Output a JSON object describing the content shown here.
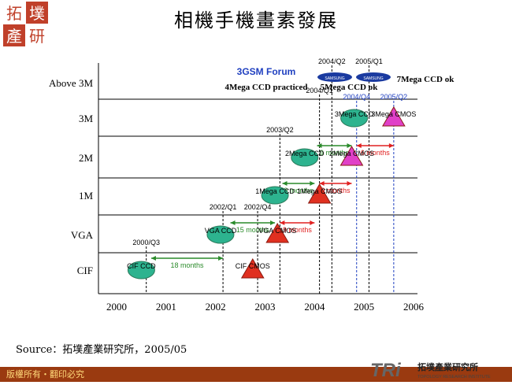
{
  "page": {
    "title": "相機手機畫素發展",
    "source": "Source：拓墣產業研究所，2005/05",
    "footer": "版權所有・翻印必究",
    "logo_text": [
      "拓",
      "墣",
      "產",
      "研"
    ],
    "tri_logo": {
      "mark": "TRi",
      "name_zh": "拓墣產業研究所",
      "name_en": "TOPOLOGY RESEARCH INSTITUTE"
    }
  },
  "chart_data": {
    "type": "scatter",
    "title": "相機手機畫素發展",
    "xlabel": "",
    "ylabel": "",
    "x_ticks": [
      "2000",
      "2001",
      "2002",
      "2003",
      "2004",
      "2005",
      "2006"
    ],
    "y_levels": [
      "CIF",
      "VGA",
      "1M",
      "2M",
      "3M",
      "Above 3M"
    ],
    "xlim": [
      2000,
      2006
    ],
    "series": [
      {
        "name": "CCD",
        "shape": "ellipse",
        "color": "#2db38f",
        "points": [
          {
            "label": "CIF CCD",
            "x": 2000.5,
            "level": "CIF"
          },
          {
            "label": "VGA CCD",
            "x": 2002.1,
            "level": "VGA"
          },
          {
            "label": "1Mega CCD",
            "x": 2003.2,
            "level": "1M"
          },
          {
            "label": "2Mega CCD",
            "x": 2003.8,
            "level": "2M"
          },
          {
            "label": "3Mega CCD",
            "x": 2004.8,
            "level": "3M"
          }
        ]
      },
      {
        "name": "CMOS",
        "shape": "triangle",
        "color": "#e03020",
        "points": [
          {
            "label": "CIF CMOS",
            "x": 2002.75,
            "level": "CIF"
          },
          {
            "label": "VGA CMOS",
            "x": 2003.25,
            "level": "VGA"
          },
          {
            "label": "1Mega CMOS",
            "x": 2004.1,
            "level": "1M"
          }
        ]
      },
      {
        "name": "CMOS (2005)",
        "shape": "triangle",
        "color": "#e040c8",
        "points": [
          {
            "label": "2Mega CMOS",
            "x": 2004.75,
            "level": "2M"
          },
          {
            "label": "3Mega CMOS",
            "x": 2005.6,
            "level": "3M"
          }
        ]
      }
    ],
    "milestones": [
      {
        "label": "2000/Q3",
        "x": 2000.6,
        "level": "CIF"
      },
      {
        "label": "2002/Q1",
        "x": 2002.15,
        "level": "VGA"
      },
      {
        "label": "2002/Q4",
        "x": 2002.85,
        "level": "VGA"
      },
      {
        "label": "2003/Q2",
        "x": 2003.3,
        "level": "2M"
      },
      {
        "label": "2004/Q1",
        "x": 2004.1,
        "level": "3M"
      },
      {
        "label": "2004/Q2",
        "x": 2004.35,
        "level": "top"
      },
      {
        "label": "2005/Q1",
        "x": 2005.1,
        "level": "top"
      },
      {
        "label": "2004/Q4",
        "x": 2004.85,
        "level": "top2"
      },
      {
        "label": "2005/Q2",
        "x": 2005.6,
        "level": "top2"
      }
    ],
    "intervals": [
      {
        "label": "18 months",
        "color": "#2a8a2a",
        "from": 2000.7,
        "to": 2002.15,
        "level": "CIF"
      },
      {
        "label": "15 months",
        "color": "#2a8a2a",
        "from": 2002.3,
        "to": 2003.2,
        "level": "VGA"
      },
      {
        "label": "9 months",
        "color": "#e02020",
        "from": 2003.3,
        "to": 2004.0,
        "level": "VGA"
      },
      {
        "label": "9 months",
        "color": "#2a8a2a",
        "from": 2003.35,
        "to": 2004.0,
        "level": "1M"
      },
      {
        "label": "9 months",
        "color": "#e02020",
        "from": 2004.1,
        "to": 2004.75,
        "level": "1M"
      },
      {
        "label": "9 months",
        "color": "#2a8a2a",
        "from": 2004.05,
        "to": 2004.75,
        "level": "2M"
      },
      {
        "label": "6 months",
        "color": "#e02020",
        "from": 2004.85,
        "to": 2005.6,
        "level": "2M"
      }
    ],
    "annotations": [
      {
        "text": "3GSM Forum"
      },
      {
        "text": "4Mega CCD practiced"
      },
      {
        "text": "5Mega CCD ok"
      },
      {
        "text": "7Mega CCD ok"
      },
      {
        "text": "SAMSUNG"
      },
      {
        "text": "SAMSUNG"
      }
    ]
  }
}
